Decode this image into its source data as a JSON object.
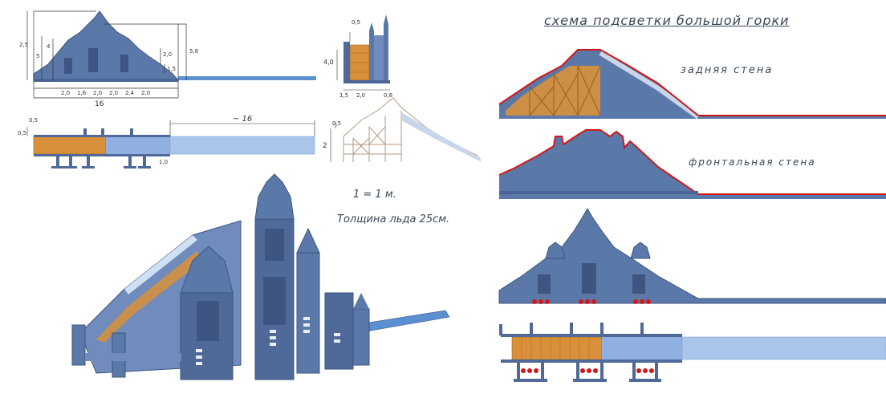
{
  "title": "схема подсветки большой горки",
  "labels": {
    "back_wall": "задняя стена",
    "front_wall": "фронтальная стена",
    "scale": "1 = 1 м.",
    "ice_thickness": "Толщина льда 25см."
  },
  "dimensions": {
    "front_elevation": {
      "total_width": "16",
      "height_left": "2,5",
      "height_a": "5",
      "height_b": "4",
      "height_right": "5,8",
      "small_right_1": "2,0",
      "small_right_2": "1,5",
      "bottom": [
        "2,0",
        "1,6",
        "2,0",
        "2,0",
        "2,4",
        "2,0"
      ]
    },
    "side_section": {
      "top": "0,5",
      "height": "4,0",
      "bottom": [
        "1,5",
        "2,0",
        "0,8"
      ]
    },
    "plan": {
      "length": "~ 16",
      "left_top": "0,5",
      "left_side": "0,5",
      "post": "1,0"
    },
    "iso_small": {
      "top": "0,5",
      "height": "2"
    }
  },
  "colors": {
    "structure": "#5a78a8",
    "structure_dark": "#3d5580",
    "wood": "#d9903a",
    "ice": "#a9c6ea",
    "led": "#d01818",
    "ink": "#2f3a4a"
  }
}
